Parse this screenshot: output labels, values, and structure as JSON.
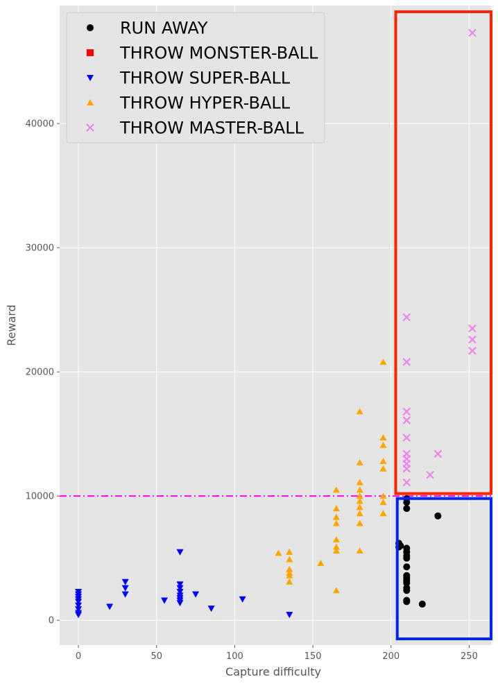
{
  "chart_data": {
    "type": "scatter",
    "xlabel": "Capture difficulty",
    "ylabel": "Reward",
    "xlim": [
      -12,
      264
    ],
    "ylim": [
      -2000,
      49500
    ],
    "x_ticks": [
      0,
      50,
      100,
      150,
      200,
      250
    ],
    "y_ticks": [
      0,
      10000,
      20000,
      30000,
      40000
    ],
    "grid": true,
    "legend_position": "top-left",
    "threshold_line": {
      "y": 10000,
      "color": "#ff00ff",
      "style": "dash-dot"
    },
    "highlight_boxes": [
      {
        "name": "red-box",
        "x": [
          203,
          264
        ],
        "y": [
          10200,
          49000
        ],
        "color": "#ff2200"
      },
      {
        "name": "blue-box",
        "x": [
          204,
          264
        ],
        "y": [
          -1500,
          9800
        ],
        "color": "#0022ff"
      }
    ],
    "series": [
      {
        "name": "RUN AWAY",
        "marker": "circle",
        "color": "#000000",
        "points": [
          [
            205,
            6200
          ],
          [
            205,
            5900
          ],
          [
            206,
            6000
          ],
          [
            210,
            9800
          ],
          [
            210,
            9500
          ],
          [
            210,
            9000
          ],
          [
            210,
            5800
          ],
          [
            210,
            5500
          ],
          [
            210,
            5200
          ],
          [
            210,
            5000
          ],
          [
            210,
            4300
          ],
          [
            210,
            3600
          ],
          [
            210,
            3400
          ],
          [
            210,
            3200
          ],
          [
            210,
            3000
          ],
          [
            210,
            2600
          ],
          [
            210,
            2400
          ],
          [
            210,
            1600
          ],
          [
            210,
            1500
          ],
          [
            220,
            1300
          ],
          [
            230,
            8400
          ]
        ]
      },
      {
        "name": "THROW MONSTER-BALL",
        "marker": "square",
        "color": "#ff0000",
        "points": []
      },
      {
        "name": "THROW SUPER-BALL",
        "marker": "triangle-down",
        "color": "#0000ff",
        "points": [
          [
            0,
            2300
          ],
          [
            0,
            2100
          ],
          [
            0,
            1900
          ],
          [
            0,
            1700
          ],
          [
            0,
            1500
          ],
          [
            0,
            1200
          ],
          [
            0,
            900
          ],
          [
            0,
            600
          ],
          [
            0,
            450
          ],
          [
            20,
            1100
          ],
          [
            30,
            3100
          ],
          [
            30,
            2600
          ],
          [
            30,
            2100
          ],
          [
            55,
            1600
          ],
          [
            65,
            5500
          ],
          [
            65,
            2900
          ],
          [
            65,
            2600
          ],
          [
            65,
            2300
          ],
          [
            65,
            2000
          ],
          [
            65,
            1800
          ],
          [
            65,
            1600
          ],
          [
            65,
            1400
          ],
          [
            75,
            2100
          ],
          [
            85,
            950
          ],
          [
            105,
            1700
          ],
          [
            135,
            450
          ]
        ]
      },
      {
        "name": "THROW HYPER-BALL",
        "marker": "triangle-up",
        "color": "#ffa500",
        "points": [
          [
            128,
            5400
          ],
          [
            135,
            5500
          ],
          [
            135,
            4900
          ],
          [
            135,
            4100
          ],
          [
            135,
            3800
          ],
          [
            135,
            3600
          ],
          [
            135,
            3100
          ],
          [
            155,
            4600
          ],
          [
            165,
            10500
          ],
          [
            165,
            9000
          ],
          [
            165,
            8300
          ],
          [
            165,
            7800
          ],
          [
            165,
            6500
          ],
          [
            165,
            5900
          ],
          [
            165,
            5600
          ],
          [
            165,
            2400
          ],
          [
            180,
            16800
          ],
          [
            180,
            12700
          ],
          [
            180,
            11100
          ],
          [
            180,
            10500
          ],
          [
            180,
            10000
          ],
          [
            180,
            9600
          ],
          [
            180,
            9100
          ],
          [
            180,
            8600
          ],
          [
            180,
            7800
          ],
          [
            180,
            5600
          ],
          [
            195,
            20800
          ],
          [
            195,
            14700
          ],
          [
            195,
            14100
          ],
          [
            195,
            12800
          ],
          [
            195,
            12200
          ],
          [
            195,
            10000
          ],
          [
            195,
            9500
          ],
          [
            195,
            8600
          ]
        ]
      },
      {
        "name": "THROW MASTER-BALL",
        "marker": "x",
        "color": "#ee82ee",
        "points": [
          [
            210,
            24400
          ],
          [
            210,
            20800
          ],
          [
            210,
            16800
          ],
          [
            210,
            16100
          ],
          [
            210,
            14700
          ],
          [
            210,
            13400
          ],
          [
            210,
            13000
          ],
          [
            210,
            12600
          ],
          [
            210,
            12200
          ],
          [
            210,
            11100
          ],
          [
            225,
            11700
          ],
          [
            230,
            13400
          ],
          [
            252,
            47300
          ],
          [
            252,
            23500
          ],
          [
            252,
            22600
          ],
          [
            252,
            21700
          ]
        ]
      }
    ]
  }
}
